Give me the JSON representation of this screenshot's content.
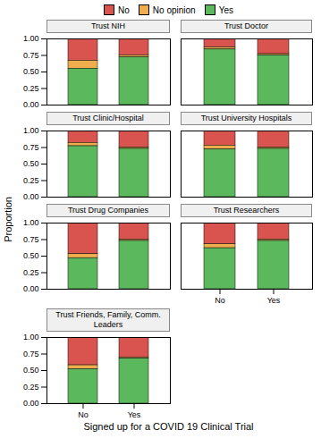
{
  "chart_data": [
    {
      "type": "bar",
      "stacked": true,
      "title": "Trust NIH",
      "legend": "top",
      "tick_labels": "y",
      "categories": [
        "No",
        "Yes"
      ],
      "series": [
        {
          "name": "No",
          "color": "#d9534f",
          "values": [
            0.33,
            0.25
          ]
        },
        {
          "name": "No opinion",
          "color": "#f0ad4e",
          "values": [
            0.12,
            0.03
          ]
        },
        {
          "name": "Yes",
          "color": "#5cb85c",
          "values": [
            0.55,
            0.72
          ]
        }
      ],
      "ylim": [
        0.0,
        1.0
      ],
      "yticks": [
        {
          "value": 0.0,
          "label": "0.00"
        },
        {
          "value": 0.25,
          "label": "0.25"
        },
        {
          "value": 0.5,
          "label": "0.50"
        },
        {
          "value": 0.75,
          "label": "0.75"
        },
        {
          "value": 1.0,
          "label": "1.00"
        }
      ]
    },
    {
      "type": "bar",
      "stacked": true,
      "title": "Trust Doctor",
      "tick_labels": false,
      "categories": [
        "No",
        "Yes"
      ],
      "series": [
        {
          "name": "No",
          "color": "#d9534f",
          "values": [
            0.13,
            0.23
          ]
        },
        {
          "name": "No opinion",
          "color": "#f0ad4e",
          "values": [
            0.03,
            0.02
          ]
        },
        {
          "name": "Yes",
          "color": "#5cb85c",
          "values": [
            0.84,
            0.75
          ]
        }
      ],
      "ylim": [
        0.0,
        1.0
      ],
      "yticks": [
        {
          "value": 0.0,
          "label": "0.00"
        },
        {
          "value": 0.25,
          "label": "0.25"
        },
        {
          "value": 0.5,
          "label": "0.50"
        },
        {
          "value": 0.75,
          "label": "0.75"
        },
        {
          "value": 1.0,
          "label": "1.00"
        }
      ]
    },
    {
      "type": "bar",
      "stacked": true,
      "title": "Trust Clinic/Hospital",
      "tick_labels": "y",
      "categories": [
        "No",
        "Yes"
      ],
      "series": [
        {
          "name": "No",
          "color": "#d9534f",
          "values": [
            0.18,
            0.25
          ]
        },
        {
          "name": "No opinion",
          "color": "#f0ad4e",
          "values": [
            0.05,
            0.02
          ]
        },
        {
          "name": "Yes",
          "color": "#5cb85c",
          "values": [
            0.77,
            0.73
          ]
        }
      ],
      "ylim": [
        0.0,
        1.0
      ],
      "yticks": [
        {
          "value": 0.0,
          "label": "0.00"
        },
        {
          "value": 0.25,
          "label": "0.25"
        },
        {
          "value": 0.5,
          "label": "0.50"
        },
        {
          "value": 0.75,
          "label": "0.75"
        },
        {
          "value": 1.0,
          "label": "1.00"
        }
      ]
    },
    {
      "type": "bar",
      "stacked": true,
      "title": "Trust University Hospitals",
      "tick_labels": false,
      "categories": [
        "No",
        "Yes"
      ],
      "series": [
        {
          "name": "No",
          "color": "#d9534f",
          "values": [
            0.22,
            0.25
          ]
        },
        {
          "name": "No opinion",
          "color": "#f0ad4e",
          "values": [
            0.06,
            0.02
          ]
        },
        {
          "name": "Yes",
          "color": "#5cb85c",
          "values": [
            0.72,
            0.73
          ]
        }
      ],
      "ylim": [
        0.0,
        1.0
      ],
      "yticks": [
        {
          "value": 0.0,
          "label": "0.00"
        },
        {
          "value": 0.25,
          "label": "0.25"
        },
        {
          "value": 0.5,
          "label": "0.50"
        },
        {
          "value": 0.75,
          "label": "0.75"
        },
        {
          "value": 1.0,
          "label": "1.00"
        }
      ]
    },
    {
      "type": "bar",
      "stacked": true,
      "title": "Trust Drug Companies",
      "tick_labels": "y",
      "categories": [
        "No",
        "Yes"
      ],
      "series": [
        {
          "name": "No",
          "color": "#d9534f",
          "values": [
            0.47,
            0.25
          ]
        },
        {
          "name": "No opinion",
          "color": "#f0ad4e",
          "values": [
            0.06,
            0.02
          ]
        },
        {
          "name": "Yes",
          "color": "#5cb85c",
          "values": [
            0.47,
            0.73
          ]
        }
      ],
      "ylim": [
        0.0,
        1.0
      ],
      "yticks": [
        {
          "value": 0.0,
          "label": "0.00"
        },
        {
          "value": 0.25,
          "label": "0.25"
        },
        {
          "value": 0.5,
          "label": "0.50"
        },
        {
          "value": 0.75,
          "label": "0.75"
        },
        {
          "value": 1.0,
          "label": "1.00"
        }
      ]
    },
    {
      "type": "bar",
      "stacked": true,
      "title": "Trust Researchers",
      "tick_labels": "x",
      "categories": [
        "No",
        "Yes"
      ],
      "series": [
        {
          "name": "No",
          "color": "#d9534f",
          "values": [
            0.32,
            0.25
          ]
        },
        {
          "name": "No opinion",
          "color": "#f0ad4e",
          "values": [
            0.06,
            0.02
          ]
        },
        {
          "name": "Yes",
          "color": "#5cb85c",
          "values": [
            0.62,
            0.73
          ]
        }
      ],
      "ylim": [
        0.0,
        1.0
      ],
      "yticks": [
        {
          "value": 0.0,
          "label": "0.00"
        },
        {
          "value": 0.25,
          "label": "0.25"
        },
        {
          "value": 0.5,
          "label": "0.50"
        },
        {
          "value": 0.75,
          "label": "0.75"
        },
        {
          "value": 1.0,
          "label": "1.00"
        }
      ]
    },
    {
      "type": "bar",
      "stacked": true,
      "title": "Trust Friends, Family, Comm. Leaders",
      "xlabel": "Signed up for a COVID 19 Clinical Trial",
      "ylabel": "Proportion",
      "categories": [
        "No",
        "Yes"
      ],
      "series": [
        {
          "name": "No",
          "color": "#d9534f",
          "values": [
            0.42,
            0.3
          ]
        },
        {
          "name": "No opinion",
          "color": "#f0ad4e",
          "values": [
            0.06,
            0.02
          ]
        },
        {
          "name": "Yes",
          "color": "#5cb85c",
          "values": [
            0.52,
            0.68
          ]
        }
      ],
      "ylim": [
        0.0,
        1.0
      ],
      "yticks": [
        {
          "value": 0.0,
          "label": "0.00"
        },
        {
          "value": 0.25,
          "label": "0.25"
        },
        {
          "value": 0.5,
          "label": "0.50"
        },
        {
          "value": 0.75,
          "label": "0.75"
        },
        {
          "value": 1.0,
          "label": "1.00"
        }
      ]
    }
  ]
}
